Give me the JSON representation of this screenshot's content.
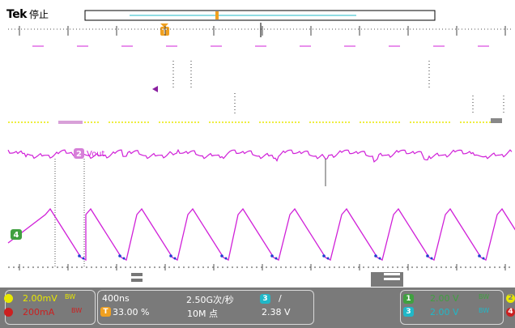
{
  "header": {
    "brand": "Tek",
    "state": "停止"
  },
  "trigger_marker": "T",
  "channel_labels": {
    "ch2_num": "2",
    "ch2_name": "Vout",
    "ch4_num": "4"
  },
  "status": {
    "ch_yellow_scale": "2.00mV",
    "ch_yellow_bw": "BW",
    "ch_red_scale": "200mA",
    "ch_red_bw": "BW",
    "timebase": "400ns",
    "trigger_pos_badge": "T",
    "trigger_pos": "33.00 %",
    "sample_rate": "2.50G次/秒",
    "record_length": "10M 点",
    "trigger_src_badge": "3",
    "trigger_slope": "/",
    "trigger_level": "2.38 V",
    "ch1_badge": "1",
    "ch1_scale": "2.00 V",
    "ch1_bw": "BW",
    "ch3_badge": "3",
    "ch3_scale": "2.00 V",
    "ch3_bw": "BW",
    "ch2_edge_badge": "2",
    "ch4_edge_badge": "4"
  },
  "colors": {
    "ch1_yellow": "#e8e800",
    "ch2_magenta": "#d020d8",
    "ch3_cyan": "#20b8c8",
    "ch4_green": "#40a040",
    "ch_red": "#cc2020",
    "status_bg": "#7a7a7a",
    "accent_orange": "#f0a020"
  }
}
